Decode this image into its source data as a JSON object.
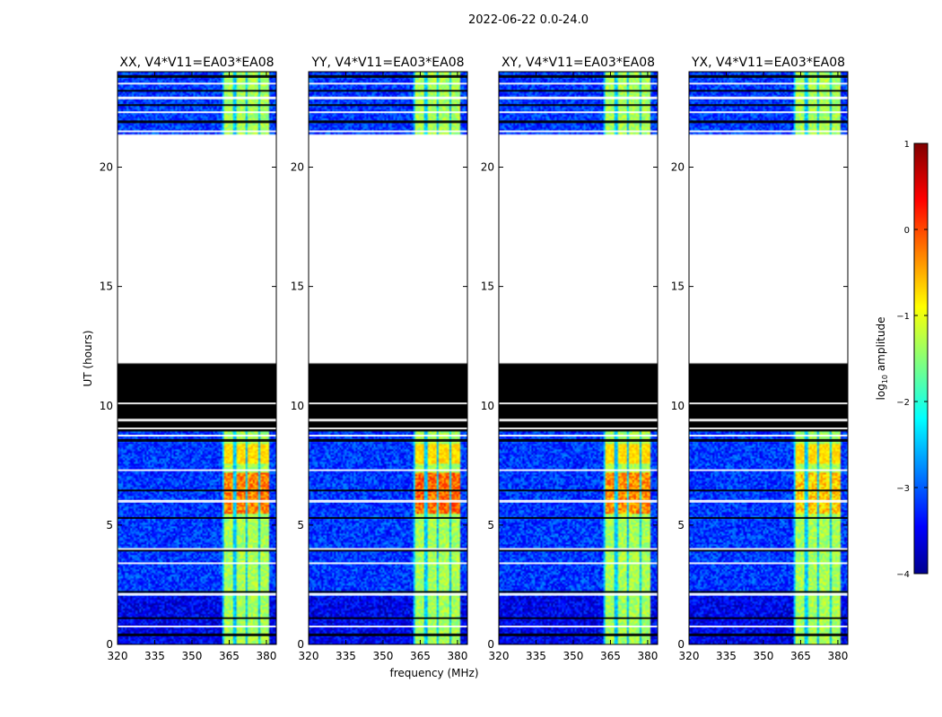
{
  "figure_title": "2022-06-22 0.0-24.0",
  "xlabel": "frequency (MHz)",
  "ylabel": "UT (hours)",
  "colorbar": {
    "label_prefix": "log",
    "label_sub": "10",
    "label_suffix": " amplitude",
    "ticks": [
      1,
      0,
      -1,
      -2,
      -3,
      -4
    ],
    "tick_labels": [
      "1",
      "0",
      "−1",
      "−2",
      "−3",
      "−4"
    ],
    "range": [
      -4,
      1
    ],
    "colormap": "jet",
    "colors": [
      "#00008f",
      "#0000ff",
      "#00ffff",
      "#ffff00",
      "#ff0000",
      "#800000"
    ]
  },
  "chart_data": {
    "type": "heatmap",
    "x_range": [
      320,
      384
    ],
    "y_range": [
      0,
      24
    ],
    "x_ticks": [
      320,
      335,
      350,
      365,
      380
    ],
    "x_tick_labels": [
      "320",
      "335",
      "350",
      "365",
      "380"
    ],
    "y_ticks": [
      0,
      5,
      10,
      15,
      20
    ],
    "y_tick_labels": [
      "0",
      "5",
      "10",
      "15",
      "20"
    ],
    "flagged_black_hours": [
      8.9,
      11.8
    ],
    "no_data_hours": [
      11.8,
      21.4
    ],
    "rfi_band_mhz": [
      362,
      381
    ],
    "panels": [
      {
        "title": "XX, V4*V11=EA03*EA08",
        "pol": "XX",
        "rfi_band_mhz": [
          362,
          381
        ],
        "rfi_peak_log_amp": 0.2
      },
      {
        "title": "YY, V4*V11=EA03*EA08",
        "pol": "YY",
        "rfi_band_mhz": [
          362,
          381
        ],
        "rfi_peak_log_amp": 0.3
      },
      {
        "title": "XY, V4*V11=EA03*EA08",
        "pol": "XY",
        "rfi_band_mhz": [
          362,
          381
        ],
        "rfi_peak_log_amp": 0.1
      },
      {
        "title": "YX, V4*V11=EA03*EA08",
        "pol": "YX",
        "rfi_band_mhz": [
          362,
          381
        ],
        "rfi_peak_log_amp": -0.2
      }
    ]
  }
}
